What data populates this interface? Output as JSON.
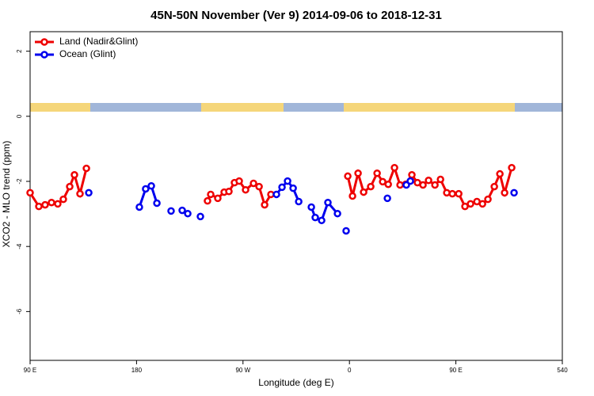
{
  "chart_data": {
    "type": "line",
    "title": "45N-50N November (Ver 9)   2014-09-06 to 2018-12-31",
    "x_label": "Longitude (deg E)",
    "y_label": "XCO2 - MLO trend (ppm)",
    "xlim": [
      90,
      540
    ],
    "ylim": [
      -7.5,
      2.6
    ],
    "xticks": [
      {
        "value": 90,
        "label": "90 E"
      },
      180,
      {
        "value": 270,
        "label": "90 W"
      },
      {
        "value": 360,
        "label": "0"
      },
      {
        "value": 450,
        "label": "90 E"
      },
      540
    ],
    "yticks": [
      2,
      0,
      -2,
      -4,
      -6
    ],
    "legend": "top-left",
    "series": [
      {
        "name": "Land (Nadir&Glint)",
        "color": "#ee0000",
        "x": [
          90,
          97.4,
          102.7,
          108.1,
          113.4,
          118.1,
          123.5,
          127.5,
          132.2,
          137.6,
          190,
          240.0,
          242.7,
          248.7,
          254.1,
          258.1,
          262.8,
          266.8,
          272.2,
          278.9,
          283.6,
          288.3,
          293.6,
          326,
          358.6,
          362.6,
          367.3,
          372.0,
          378.0,
          383.4,
          388.1,
          392.8,
          398.1,
          402.8,
          407.5,
          412.8,
          417.5,
          422.2,
          426.9,
          432.3,
          437.0,
          442.3,
          447.0,
          452.4,
          457.7,
          462.4,
          467.8,
          472.5,
          477.1,
          482.5,
          487.2,
          491.2,
          497.2
        ],
        "values": [
          -2.35,
          -2.77,
          -2.72,
          -2.65,
          -2.69,
          -2.55,
          -2.16,
          -1.8,
          -2.38,
          -1.6,
          null,
          -2.6,
          -2.4,
          -2.52,
          -2.33,
          -2.31,
          -2.04,
          -1.99,
          -2.26,
          -2.06,
          -2.16,
          -2.72,
          -2.4,
          null,
          -1.84,
          -2.45,
          -1.75,
          -2.33,
          -2.16,
          -1.75,
          -2.01,
          -2.09,
          -1.58,
          -2.11,
          -2.09,
          -1.8,
          -2.04,
          -2.11,
          -1.97,
          -2.11,
          -1.94,
          -2.35,
          -2.38,
          -2.38,
          -2.77,
          -2.69,
          -2.62,
          -2.69,
          -2.55,
          -2.16,
          -1.77,
          -2.35,
          -1.58
        ]
      },
      {
        "name": "Ocean (Glint)",
        "color": "#0000ee",
        "x": [
          139.6,
          160,
          182.4,
          187.7,
          192.5,
          197.2,
          203,
          209.2,
          214,
          218.6,
          221,
          223.3,
          228,
          234.0,
          266,
          298.3,
          303.0,
          307.7,
          312.4,
          317.1,
          322,
          327.8,
          331.1,
          336.5,
          341.8,
          349.9,
          353,
          357.2,
          375,
          392.1,
          400,
          408.1,
          411.5,
          450,
          499.2
        ],
        "values": [
          -2.35,
          null,
          -2.79,
          -2.23,
          -2.14,
          -2.67,
          null,
          -2.91,
          null,
          -2.89,
          null,
          -2.99,
          null,
          -3.08,
          null,
          -2.4,
          -2.18,
          -1.99,
          -2.21,
          -2.62,
          null,
          -2.79,
          -3.11,
          -3.2,
          -2.65,
          -2.99,
          null,
          -3.52,
          null,
          -2.52,
          null,
          -2.11,
          -1.99,
          null,
          -2.35
        ]
      }
    ]
  }
}
